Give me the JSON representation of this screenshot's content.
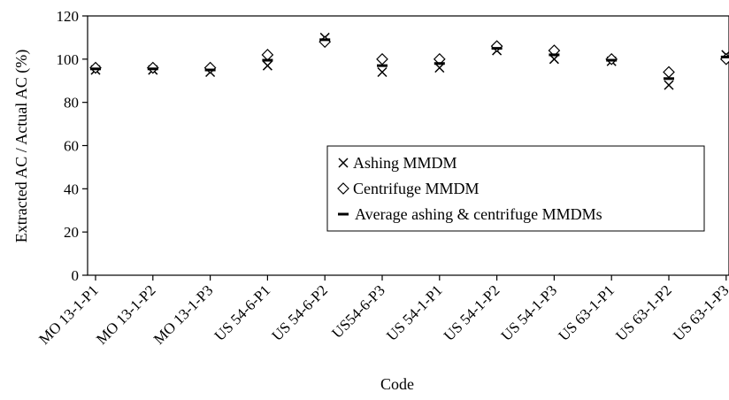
{
  "chart_data": {
    "type": "scatter",
    "xlabel": "Code",
    "ylabel": "Extracted AC / Actual AC (%)",
    "ylim": [
      0,
      120
    ],
    "yticks": [
      0,
      20,
      40,
      60,
      80,
      100,
      120
    ],
    "grid": false,
    "legend_placement": "center-right",
    "categories": [
      "MO 13-1-P1",
      "MO 13-1-P2",
      "MO 13-1-P3",
      "US 54-6-P1",
      "US 54-6-P2",
      "US54-6-P3",
      "US 54-1-P1",
      "US 54-1-P2",
      "US 54-1-P3",
      "US 63-1-P1",
      "US 63-1-P2",
      "US 63-1-P3"
    ],
    "series": [
      {
        "name": "Ashing MMDM",
        "marker": "x",
        "values": [
          95,
          95,
          94,
          97,
          110,
          94,
          96,
          104,
          100,
          99,
          88,
          102
        ]
      },
      {
        "name": "Centrifuge MMDM",
        "marker": "diamond",
        "values": [
          96,
          96,
          96,
          102,
          108,
          100,
          100,
          106,
          104,
          100,
          94,
          100
        ]
      },
      {
        "name": "Average ashing & centrifuge MMDMs",
        "marker": "dash",
        "values": [
          95.5,
          95.5,
          95,
          99.5,
          109,
          97,
          98,
          105,
          102,
          99.5,
          91,
          101
        ]
      }
    ]
  }
}
